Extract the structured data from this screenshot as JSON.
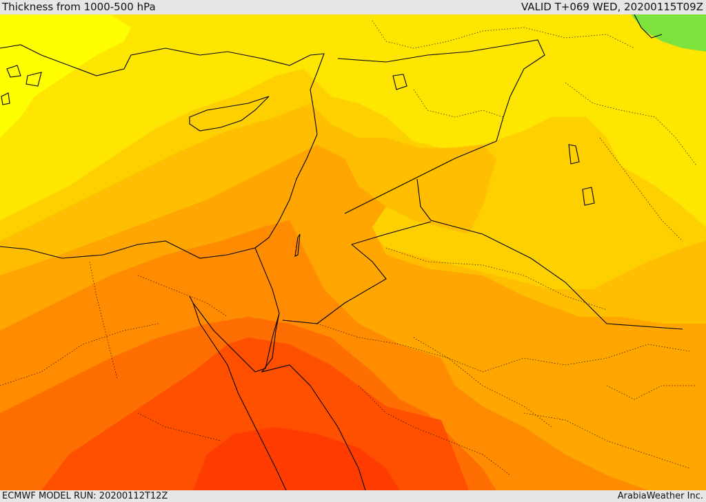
{
  "header": {
    "title": "Thickness from 1000-500 hPa",
    "valid_time": "VALID T+069 WED, 20200115T09Z"
  },
  "footer": {
    "model_run": "ECMWF MODEL RUN: 20200112T12Z",
    "credit": "ArabiaWeather Inc."
  },
  "palette": {
    "bright_yellow": "#ffff00",
    "yellow": "#ffe600",
    "gold": "#ffd000",
    "amber": "#ffbf00",
    "orange_light": "#ffa600",
    "orange": "#ff8c00",
    "orange_dark": "#ff6e00",
    "red_orange": "#ff5000",
    "red": "#ff3c00",
    "green": "#7de33c",
    "border": "#000000"
  }
}
